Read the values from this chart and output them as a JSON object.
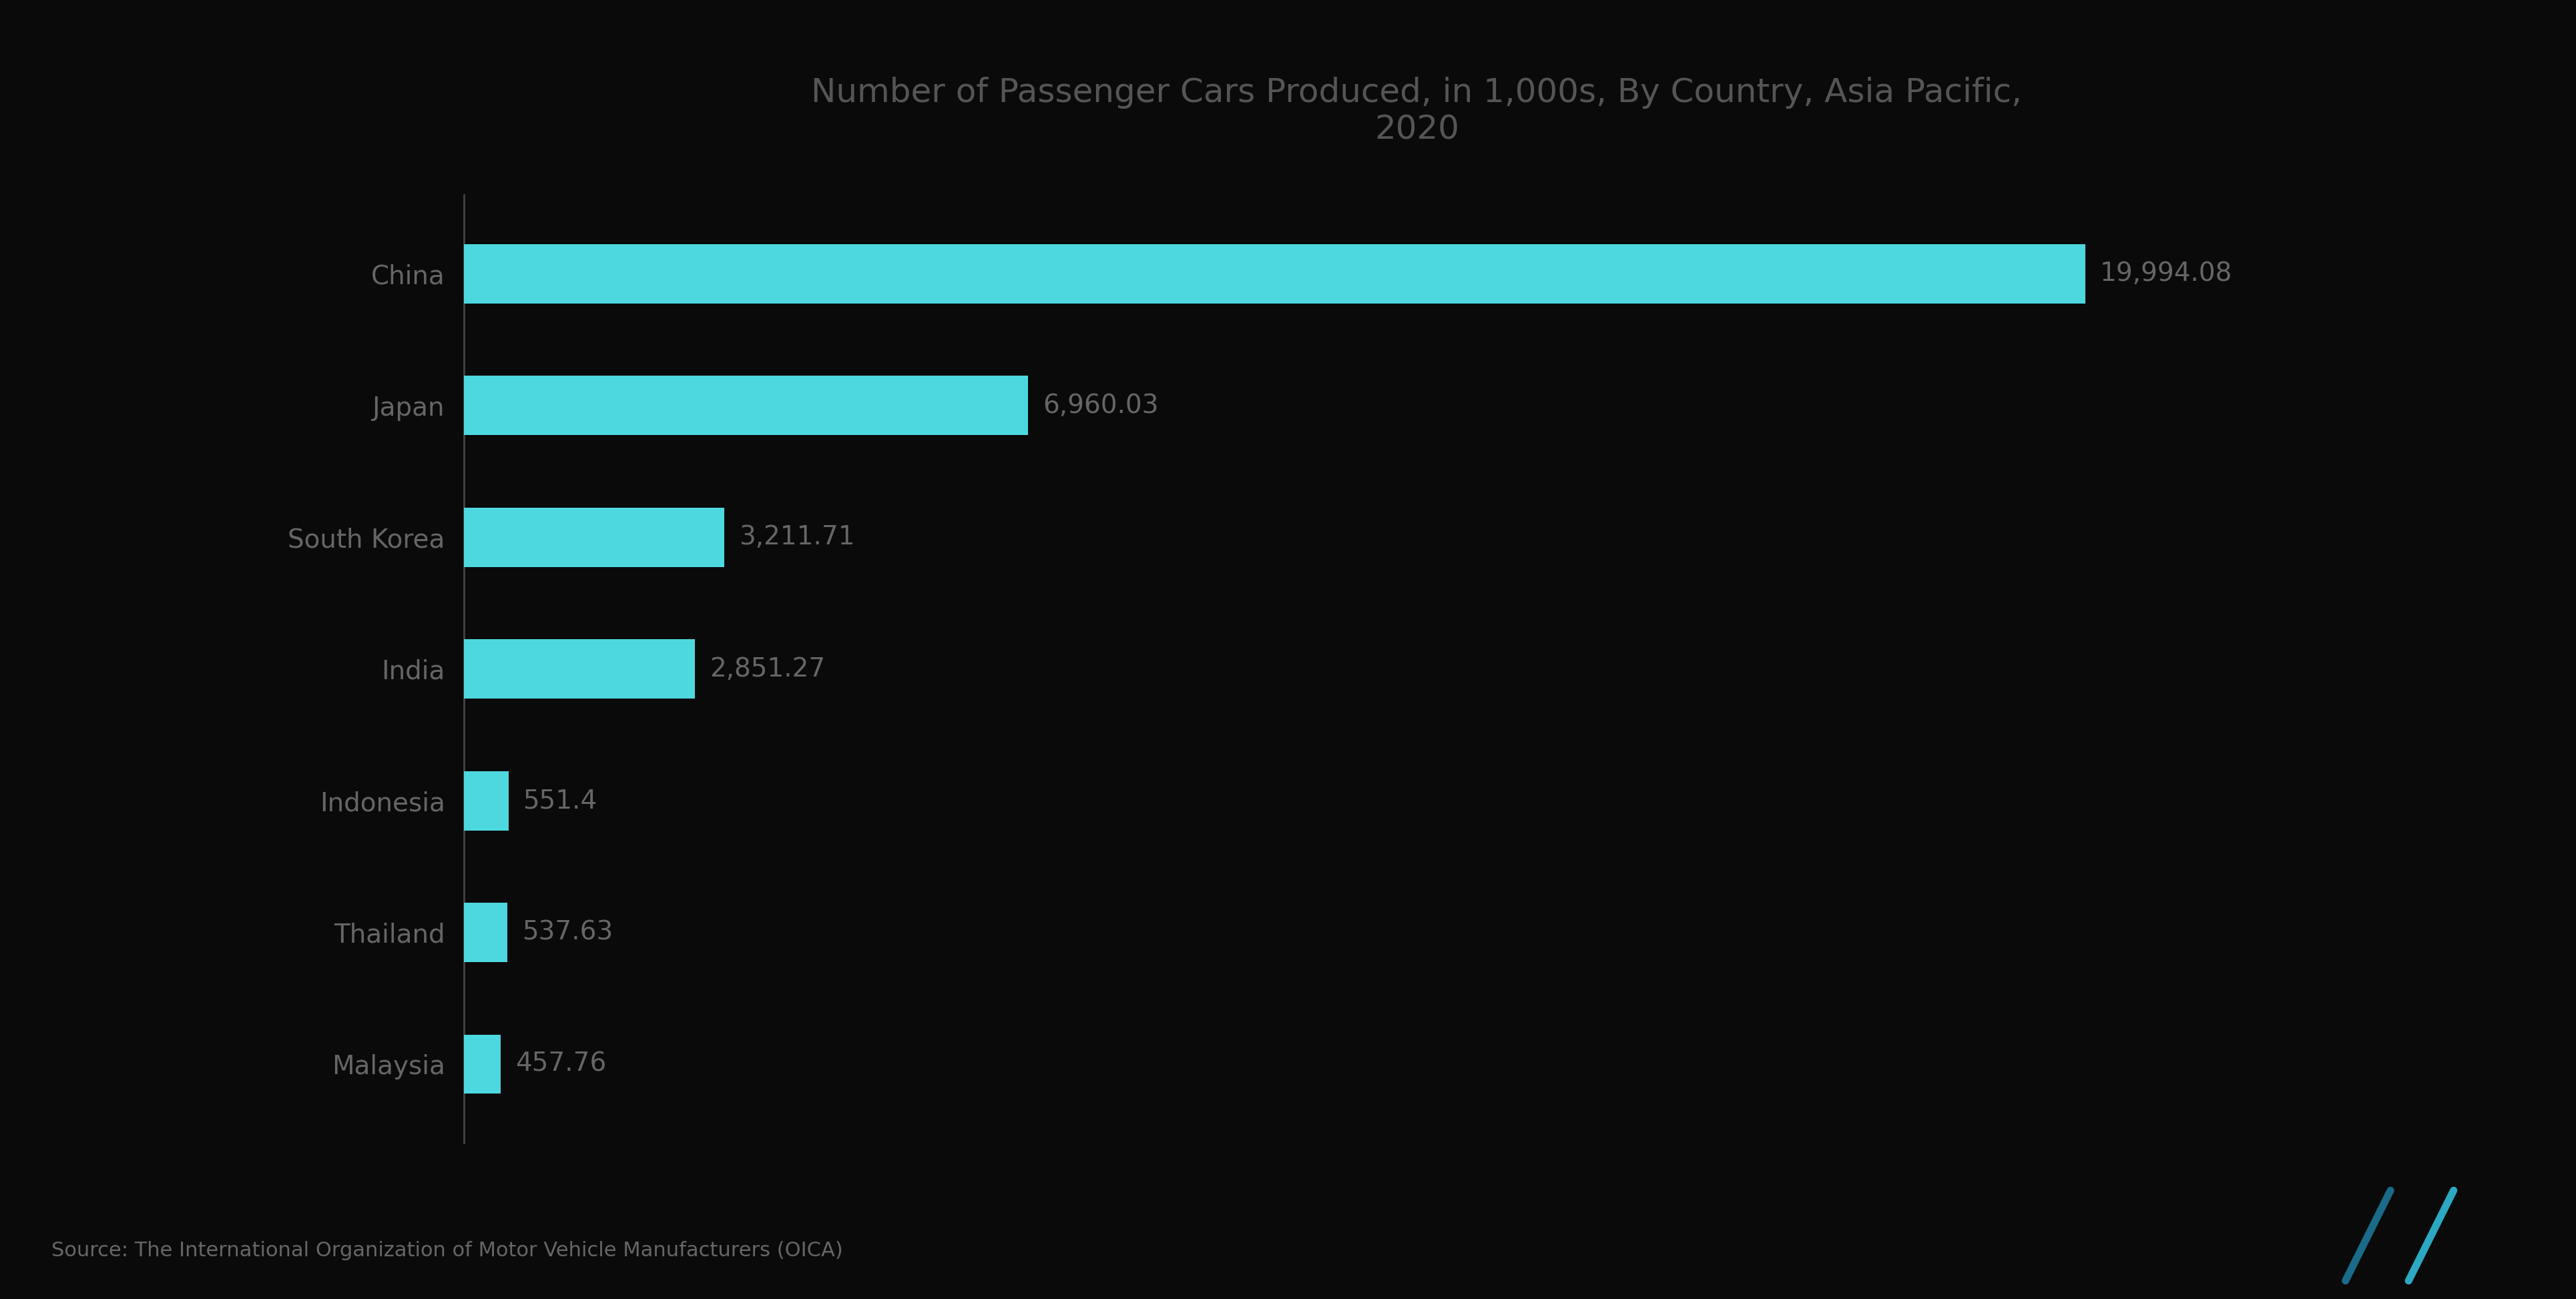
{
  "title": "Number of Passenger Cars Produced, in 1,000s, By Country, Asia Pacific,\n2020",
  "categories": [
    "China",
    "Japan",
    "South Korea",
    "India",
    "Indonesia",
    "Thailand",
    "Malaysia"
  ],
  "values": [
    19994.08,
    6960.03,
    3211.71,
    2851.27,
    551.4,
    537.63,
    457.76
  ],
  "labels": [
    "19,994.08",
    "6,960.03",
    "3,211.71",
    "2,851.27",
    "551.4",
    "537.63",
    "457.76"
  ],
  "bar_color": "#4DD8E0",
  "background_color": "#0a0a0a",
  "text_color": "#666666",
  "title_color": "#555555",
  "label_color": "#666666",
  "spine_color": "#444444",
  "source_text": "Source: The International Organization of Motor Vehicle Manufacturers (OICA)",
  "title_fontsize": 36,
  "label_fontsize": 28,
  "category_fontsize": 28,
  "source_fontsize": 22,
  "xlim_max": 23500,
  "bar_height": 0.45
}
